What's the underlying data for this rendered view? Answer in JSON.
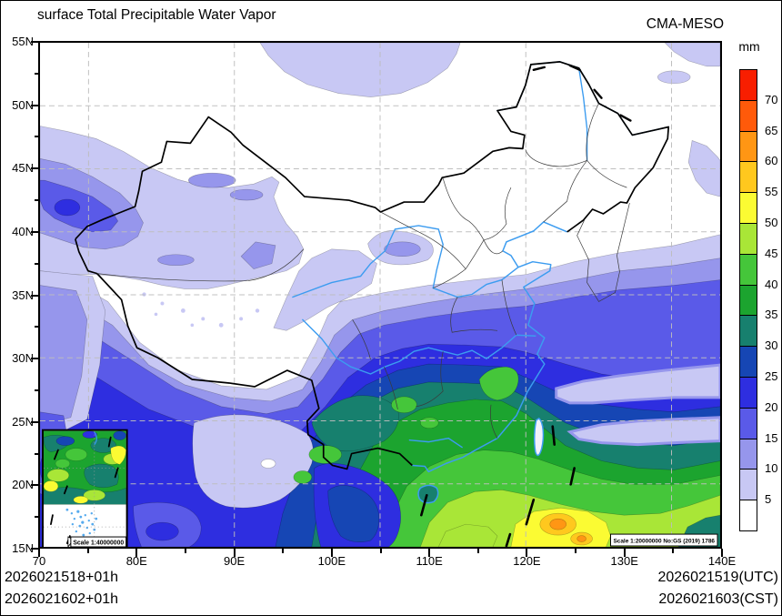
{
  "header": {
    "title": "surface Total Precipitable Water Vapor",
    "model": "CMA-MESO"
  },
  "colorbar": {
    "unit": "mm",
    "tick_values": [
      "70",
      "65",
      "60",
      "55",
      "50",
      "45",
      "40",
      "35",
      "30",
      "25",
      "20",
      "15",
      "10",
      "5"
    ],
    "colors_top_to_bottom": [
      "#F81E00",
      "#FF5A0A",
      "#FF9614",
      "#FFC81E",
      "#FBFB33",
      "#A9E637",
      "#45C63A",
      "#1CA42F",
      "#17806E",
      "#1646B4",
      "#2E2EE0",
      "#5A5AE8",
      "#9696EC",
      "#C8C8F4",
      "#FFFFFF"
    ]
  },
  "axes": {
    "x_ticks": [
      "70",
      "80E",
      "90E",
      "100E",
      "110E",
      "120E",
      "130E",
      "140E"
    ],
    "y_ticks": [
      "55N",
      "50N",
      "45N",
      "40N",
      "35N",
      "30N",
      "25N",
      "20N",
      "15N"
    ]
  },
  "map": {
    "scale_note": "Scale 1:20000000 No:GS (2019) 1786",
    "inset_scale_note": "Scale 1:40000000",
    "grid_color": "#bdbdbd",
    "river_color": "#3C9CF0",
    "border_color": "#000000"
  },
  "footer": {
    "left_line1": "2026021518+01h",
    "left_line2": "2026021602+01h",
    "right_line1": "2026021519(UTC)",
    "right_line2": "2026021603(CST)"
  }
}
